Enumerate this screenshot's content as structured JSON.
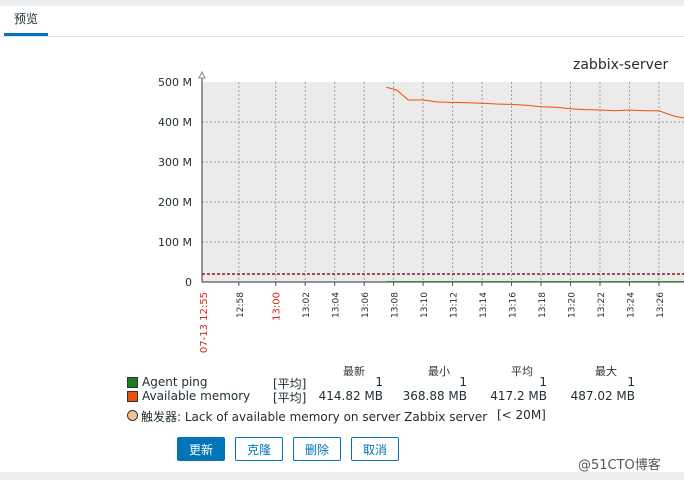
{
  "tabs": [
    {
      "label": "预览"
    }
  ],
  "graph": {
    "title": "zabbix-server"
  },
  "chart_data": {
    "type": "line",
    "title": "zabbix-server",
    "y_ticks": [
      "500 M",
      "400 M",
      "300 M",
      "200 M",
      "100 M",
      "0"
    ],
    "ylim": [
      0,
      500
    ],
    "x_start_label": "07-13 12:55",
    "x_ticks": [
      "12:58",
      "13:00",
      "13:02",
      "13:04",
      "13:06",
      "13:08",
      "13:10",
      "13:12",
      "13:14",
      "13:16",
      "13:18",
      "13:20",
      "13:22",
      "13:24",
      "13:26"
    ],
    "x_tick_values": [
      2.5,
      5,
      7,
      9,
      11,
      13,
      15,
      17,
      19,
      21,
      23,
      25,
      27,
      29,
      31
    ],
    "xlim": [
      0,
      32.7
    ],
    "grid": true,
    "series": [
      {
        "name": "Agent ping",
        "color": "#1a7e1a",
        "x": [
          12.5,
          32.7
        ],
        "y": [
          1,
          1
        ]
      },
      {
        "name": "Available memory",
        "color": "#f04e0b",
        "x": [
          12.5,
          13.2,
          14.0,
          15.0,
          16.0,
          17.0,
          18.0,
          19.0,
          20.0,
          21.0,
          22.0,
          23.0,
          24.0,
          25.0,
          26.0,
          27.0,
          28.0,
          29.0,
          30.0,
          31.0,
          32.0,
          32.7
        ],
        "y": [
          487,
          480,
          455,
          455,
          450,
          449,
          448,
          447,
          445,
          444,
          442,
          438,
          437,
          433,
          431,
          430,
          428,
          430,
          428,
          428,
          415,
          410
        ]
      },
      {
        "name": "Lack of available memory on server Zabbix server",
        "color": "#8a1a1a",
        "dashed": true,
        "x": [
          0,
          32.7
        ],
        "y": [
          20,
          20
        ]
      }
    ]
  },
  "legend": {
    "headers": [
      "最新",
      "最小",
      "平均",
      "最大"
    ],
    "items": [
      {
        "name": "Agent ping",
        "color": "#1a7e1a",
        "func": "[平均]",
        "last": "1",
        "min": "1",
        "avg": "1",
        "max": "1"
      },
      {
        "name": "Available memory",
        "color": "#f04e0b",
        "func": "[平均]",
        "last": "414.82 MB",
        "min": "368.88 MB",
        "avg": "417.2 MB",
        "max": "487.02 MB"
      }
    ],
    "trigger": {
      "label": "触发器: Lack of available memory on server Zabbix server",
      "condition": "[< 20M]",
      "color": "#f7c491"
    }
  },
  "buttons": {
    "update": "更新",
    "clone": "克隆",
    "delete": "删除",
    "cancel": "取消"
  },
  "watermark": "@51CTO博客"
}
